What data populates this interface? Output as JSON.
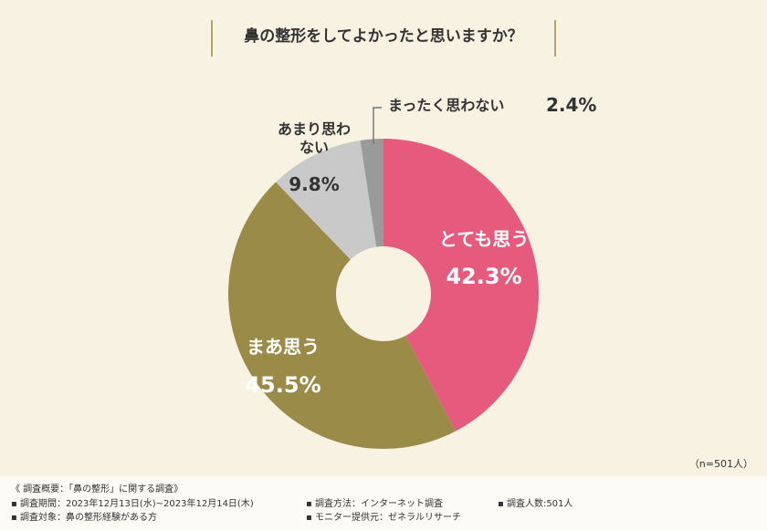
{
  "chart_data": {
    "type": "donut",
    "title": "鼻の整形をしてよかったと思いますか？",
    "categories": [
      "とても思う",
      "まあ思う",
      "あまり思わない",
      "まったく思わない"
    ],
    "values": [
      42.3,
      45.5,
      9.8,
      2.4
    ],
    "value_labels": [
      "42.3%",
      "45.5%",
      "9.8%",
      "2.4%"
    ],
    "colors": [
      "#e65a7d",
      "#9b8b48",
      "#c9c9c9",
      "#9a9a9a"
    ],
    "sample_note": "（n=501人）"
  },
  "footer": {
    "heading": "《 調査概要：「鼻の整形」に関する調査》",
    "items": [
      "▪ 調査期間：2023年12月13日(水)~2023年12月14日(木)",
      "▪ 調査方法：インターネット調査",
      "▪ 調査人数:501人",
      "▪ 調査対象：鼻の整形経験がある方",
      "▪ モニター提供元：ゼネラルリサーチ"
    ]
  }
}
